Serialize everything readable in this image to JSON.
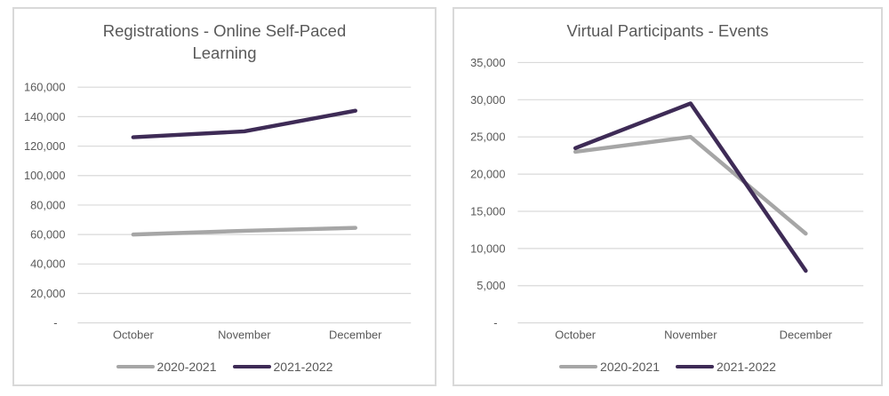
{
  "styles": {
    "background": "#FFFFFF",
    "panel_border_color": "#D9D9D9",
    "gridline_color": "#D9D9D9",
    "axis_line_color": "#D9D9D9",
    "text_color": "#595959",
    "series_gray": "#A6A6A6",
    "series_purple": "#3E2B56"
  },
  "chart_data": [
    {
      "type": "line",
      "title": "Registrations - Online Self-Paced Learning",
      "title_lines": [
        "Registrations - Online Self-Paced",
        "Learning"
      ],
      "categories": [
        "October",
        "November",
        "December"
      ],
      "series": [
        {
          "name": "2020-2021",
          "color": "#A6A6A6",
          "values": [
            60000,
            62500,
            64500
          ]
        },
        {
          "name": "2021-2022",
          "color": "#3E2B56",
          "values": [
            126000,
            130000,
            144000
          ]
        }
      ],
      "xlabel": "",
      "ylabel": "",
      "ylim": [
        0,
        160000
      ],
      "ytick_step": 20000,
      "ytick_zero_label": "-",
      "grid": true,
      "legend_position": "bottom"
    },
    {
      "type": "line",
      "title": "Virtual Participants - Events",
      "title_lines": [
        "Virtual Participants - Events"
      ],
      "categories": [
        "October",
        "November",
        "December"
      ],
      "series": [
        {
          "name": "2020-2021",
          "color": "#A6A6A6",
          "values": [
            23000,
            25000,
            12000
          ]
        },
        {
          "name": "2021-2022",
          "color": "#3E2B56",
          "values": [
            23500,
            29500,
            7000
          ]
        }
      ],
      "xlabel": "",
      "ylabel": "",
      "ylim": [
        0,
        35000
      ],
      "ytick_step": 5000,
      "ytick_zero_label": "-",
      "grid": true,
      "legend_position": "bottom"
    }
  ]
}
